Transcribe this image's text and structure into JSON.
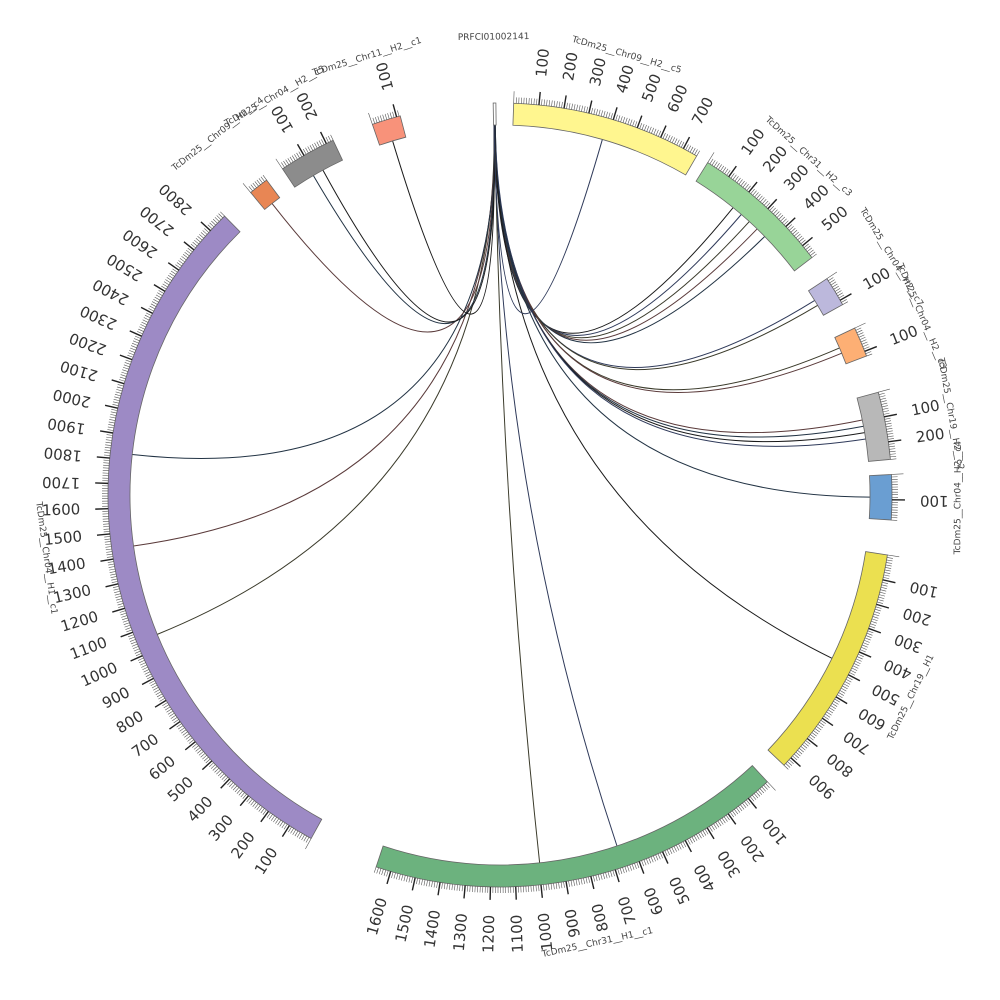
{
  "chart_data": {
    "type": "chord",
    "segments": [
      {
        "name": "TcDm25__Chr09__H2__c5",
        "length": 760,
        "color": "#fff68f",
        "ticks": [
          100,
          200,
          300,
          400,
          500,
          600,
          700
        ]
      },
      {
        "name": "TcDm25__Chr31__H2__c3",
        "length": 560,
        "color": "#98d498",
        "ticks": [
          100,
          200,
          300,
          400,
          500
        ]
      },
      {
        "name": "TcDm25__Chr04__H2__c7",
        "length": 120,
        "color": "#bcb8dc",
        "ticks": [
          100
        ]
      },
      {
        "name": "TcDm25__Chr04__H2__c3",
        "length": 120,
        "color": "#fdaf74",
        "ticks": [
          100
        ]
      },
      {
        "name": "TcDm25__Chr19__H2__c2",
        "length": 270,
        "color": "#b8b8b8",
        "ticks": [
          100,
          200
        ]
      },
      {
        "name": "TcDm25__Chr04__H2__c4",
        "length": 180,
        "color": "#6a9ed2",
        "ticks": [
          100
        ]
      },
      {
        "name": "TcDm25__Chr19__H1",
        "length": 940,
        "color": "#ebe050",
        "ticks": [
          100,
          200,
          300,
          400,
          500,
          600,
          700,
          800,
          900
        ]
      },
      {
        "name": "TcDm25__Chr31__H1__c1",
        "length": 1660,
        "color": "#6cb27e",
        "ticks": [
          100,
          200,
          300,
          400,
          500,
          600,
          700,
          800,
          900,
          1000,
          1100,
          1200,
          1300,
          1400,
          1500,
          1600
        ]
      },
      {
        "name": "TcDm25__Chr04__H1__c1",
        "length": 2880,
        "color": "#9d8ac5",
        "ticks": [
          100,
          200,
          300,
          400,
          500,
          600,
          700,
          800,
          900,
          1000,
          1100,
          1200,
          1300,
          1400,
          1500,
          1600,
          1700,
          1800,
          1900,
          2000,
          2100,
          2200,
          2300,
          2400,
          2500,
          2600,
          2700,
          2800
        ]
      },
      {
        "name": "TcDm25__Chr09__H2__c4",
        "length": 80,
        "color": "#e88654",
        "ticks": []
      },
      {
        "name": "TcDm25__Chr04__H2__c5",
        "length": 230,
        "color": "#8c8c8c",
        "ticks": [
          100,
          200
        ]
      },
      {
        "name": "TcDm25__Chr11__H2__c1",
        "length": 115,
        "color": "#f8927a",
        "ticks": [
          100
        ]
      },
      {
        "name": "PRFCI01002141",
        "length": 10,
        "color": "#ffffff",
        "ticks": []
      }
    ],
    "links": [
      {
        "from": "PRFCI01002141",
        "to": "TcDm25__Chr31__H2__c3",
        "count": 5
      },
      {
        "from": "PRFCI01002141",
        "to": "TcDm25__Chr04__H2__c7",
        "count": 2
      },
      {
        "from": "PRFCI01002141",
        "to": "TcDm25__Chr04__H2__c3",
        "count": 2
      },
      {
        "from": "PRFCI01002141",
        "to": "TcDm25__Chr19__H2__c2",
        "count": 4
      },
      {
        "from": "PRFCI01002141",
        "to": "TcDm25__Chr04__H2__c4",
        "count": 1
      },
      {
        "from": "PRFCI01002141",
        "to": "TcDm25__Chr19__H1",
        "count": 1
      },
      {
        "from": "PRFCI01002141",
        "to": "TcDm25__Chr31__H1__c1",
        "count": 2
      },
      {
        "from": "PRFCI01002141",
        "to": "TcDm25__Chr04__H1__c1",
        "count": 3
      },
      {
        "from": "PRFCI01002141",
        "to": "TcDm25__Chr09__H2__c4",
        "count": 1
      },
      {
        "from": "PRFCI01002141",
        "to": "TcDm25__Chr04__H2__c5",
        "count": 2
      },
      {
        "from": "PRFCI01002141",
        "to": "TcDm25__Chr11__H2__c1",
        "count": 1
      },
      {
        "from": "PRFCI01002141",
        "to": "TcDm25__Chr09__H2__c5",
        "count": 1
      }
    ]
  }
}
